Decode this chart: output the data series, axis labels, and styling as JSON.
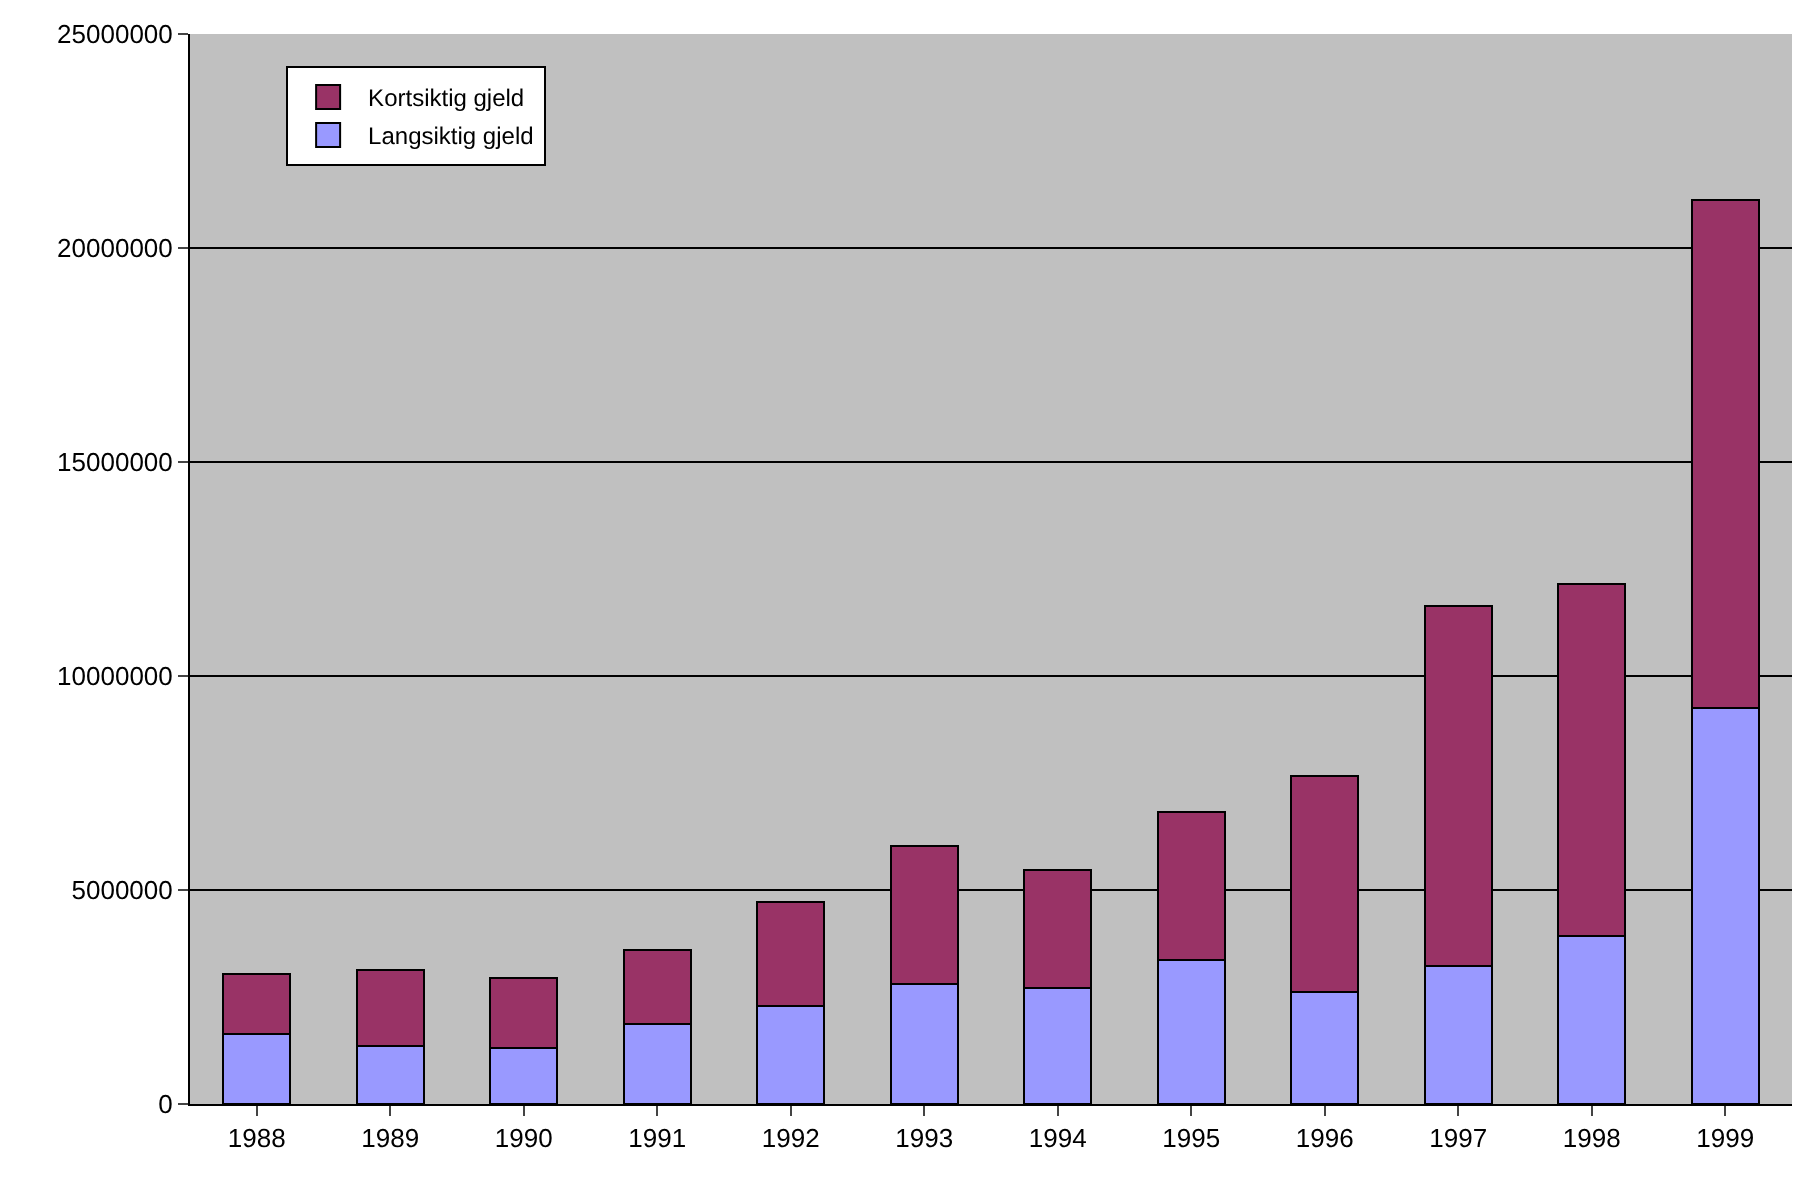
{
  "chart_data": {
    "type": "bar",
    "stacked": true,
    "categories": [
      "1988",
      "1989",
      "1990",
      "1991",
      "1992",
      "1993",
      "1994",
      "1995",
      "1996",
      "1997",
      "1998",
      "1999"
    ],
    "series": [
      {
        "name": "Langsiktig gjeld",
        "color": "#9999ff",
        "values": [
          1640000,
          1360000,
          1310000,
          1870000,
          2290000,
          2800000,
          2710000,
          3360000,
          2620000,
          3220000,
          3930000,
          9250000
        ]
      },
      {
        "name": "Kortsiktig gjeld",
        "color": "#993366",
        "values": [
          1400000,
          1770000,
          1630000,
          1730000,
          2430000,
          3230000,
          2760000,
          3460000,
          5040000,
          8420000,
          8220000,
          11870000
        ]
      }
    ],
    "ylim": [
      0,
      25000000
    ],
    "yticks": [
      0,
      5000000,
      10000000,
      15000000,
      20000000,
      25000000
    ],
    "grid": "y",
    "legend": "top left"
  }
}
